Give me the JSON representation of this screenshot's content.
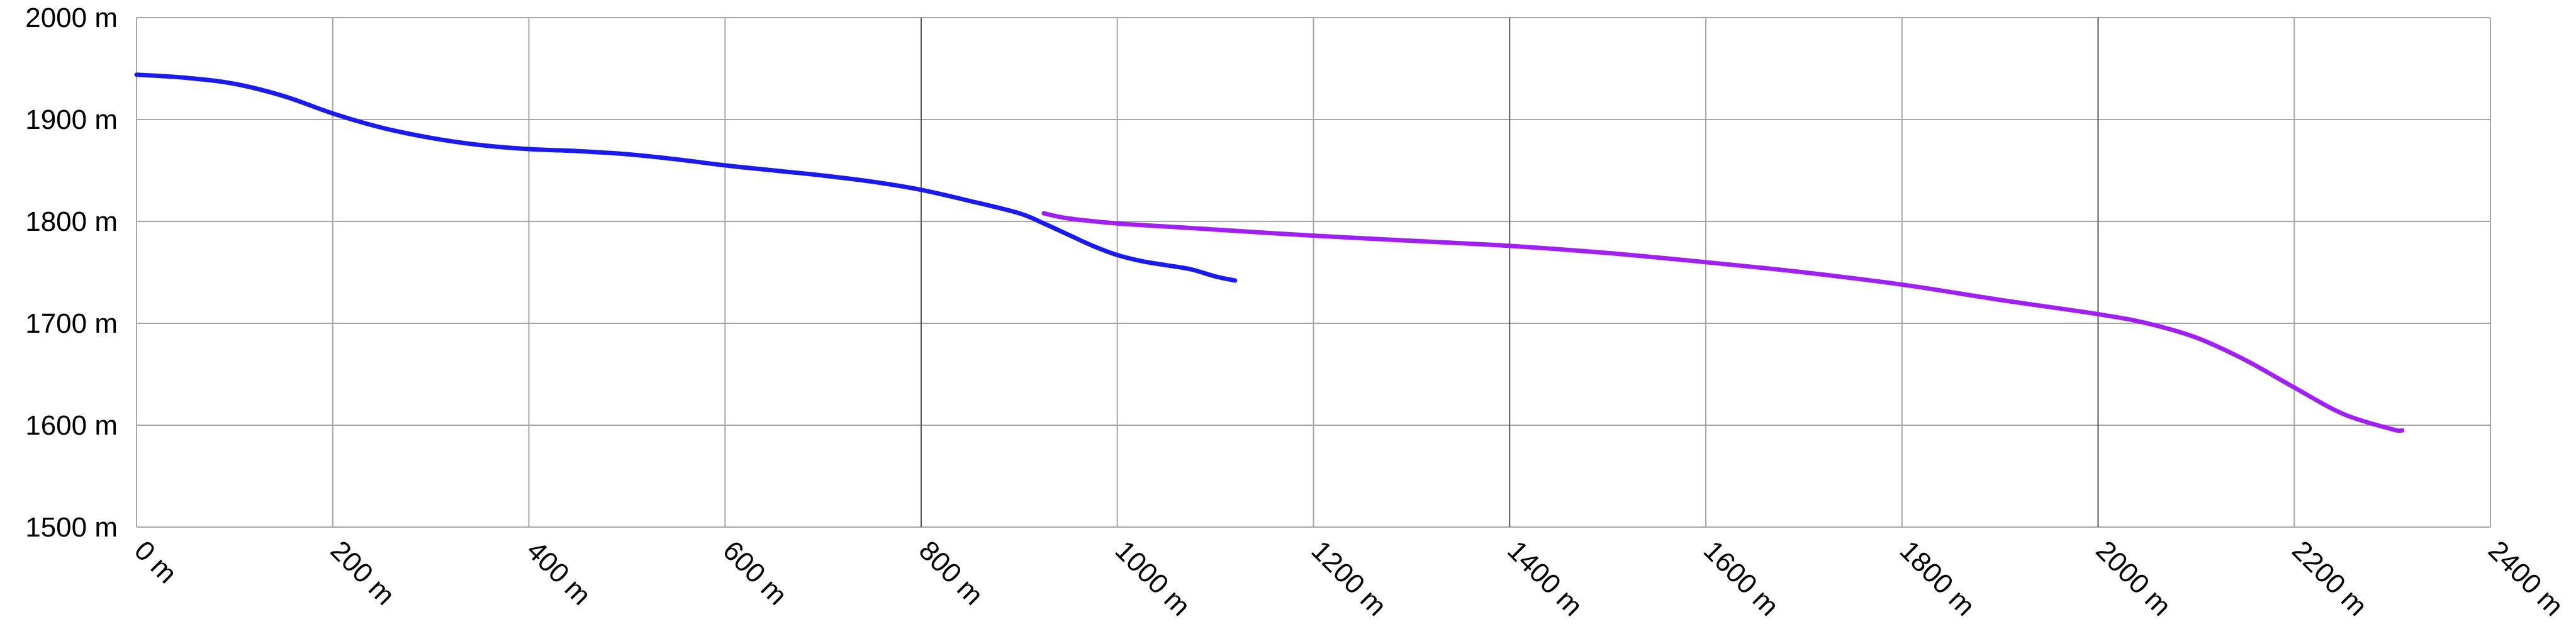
{
  "chart_data": {
    "type": "line",
    "title": "",
    "xlabel": "",
    "ylabel": "",
    "xlim": [
      0,
      2400
    ],
    "ylim": [
      1500,
      2000
    ],
    "grid": true,
    "x_ticks": [
      0,
      200,
      400,
      600,
      800,
      1000,
      1200,
      1400,
      1600,
      1800,
      2000,
      2200,
      2400
    ],
    "x_tick_labels": [
      "0 m",
      "200 m",
      "400 m",
      "600 m",
      "800 m",
      "1000 m",
      "1200 m",
      "1400 m",
      "1600 m",
      "1800 m",
      "2000 m",
      "2200 m",
      "2400 m"
    ],
    "y_ticks": [
      1500,
      1600,
      1700,
      1800,
      1900,
      2000
    ],
    "y_tick_labels": [
      "1500 m",
      "1600 m",
      "1700 m",
      "1800 m",
      "1900 m",
      "2000 m"
    ],
    "emphasized_x_gridlines": [
      800,
      1400,
      2000
    ],
    "series": [
      {
        "color": "#1a1aeb",
        "x": [
          0,
          50,
          100,
          150,
          200,
          250,
          300,
          350,
          400,
          450,
          500,
          550,
          600,
          650,
          700,
          750,
          800,
          850,
          900,
          925,
          950,
          975,
          1000,
          1025,
          1050,
          1075,
          1100,
          1120
        ],
        "y": [
          1944,
          1941,
          1935,
          1923,
          1906,
          1892,
          1882,
          1875,
          1871,
          1869,
          1866,
          1861,
          1855,
          1850,
          1845,
          1839,
          1831,
          1820,
          1808,
          1798,
          1787,
          1776,
          1767,
          1761,
          1757,
          1753,
          1746,
          1742
        ]
      },
      {
        "color": "#a020f0",
        "x": [
          925,
          950,
          1000,
          1050,
          1100,
          1200,
          1300,
          1400,
          1500,
          1600,
          1700,
          1800,
          1900,
          2000,
          2050,
          2100,
          2150,
          2200,
          2250,
          2300,
          2310
        ],
        "y": [
          1808,
          1803,
          1798,
          1795,
          1792,
          1786,
          1781,
          1776,
          1769,
          1760,
          1750,
          1738,
          1723,
          1709,
          1700,
          1686,
          1664,
          1637,
          1611,
          1596,
          1595
        ]
      }
    ]
  }
}
